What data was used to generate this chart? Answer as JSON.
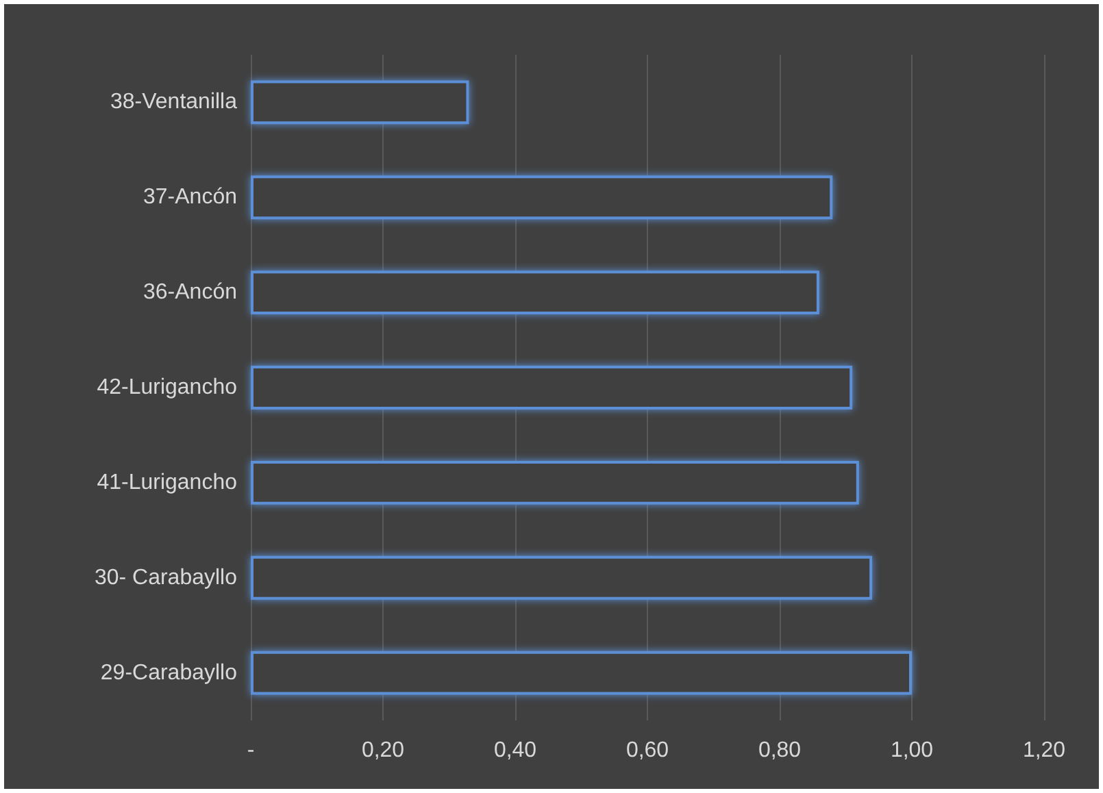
{
  "chart_data": {
    "type": "bar",
    "orientation": "horizontal",
    "categories": [
      "38-Ventanilla",
      "37-Ancón",
      "36-Ancón",
      "42-Lurigancho",
      "41-Lurigancho",
      "30- Carabayllo",
      "29-Carabayllo"
    ],
    "values": [
      0.33,
      0.88,
      0.86,
      0.91,
      0.92,
      0.94,
      1.0
    ],
    "color": "#5b8fd6",
    "xlim": [
      0,
      1.2
    ],
    "xticks": [
      {
        "value": 0,
        "label": "-"
      },
      {
        "value": 0.2,
        "label": "0,20"
      },
      {
        "value": 0.4,
        "label": "0,40"
      },
      {
        "value": 0.6,
        "label": "0,60"
      },
      {
        "value": 0.8,
        "label": "0,80"
      },
      {
        "value": 1.0,
        "label": "1,00"
      },
      {
        "value": 1.2,
        "label": "1,20"
      }
    ],
    "grid": "x"
  }
}
